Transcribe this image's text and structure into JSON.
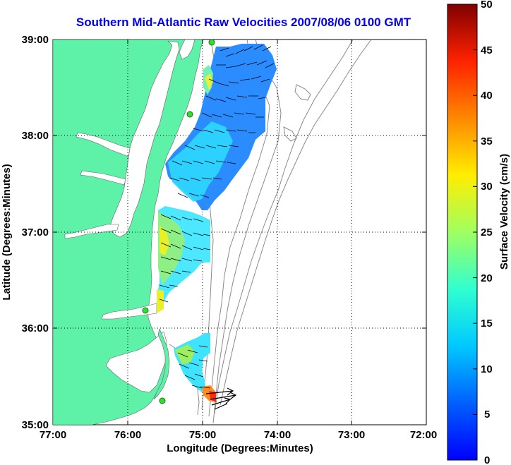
{
  "title": "Southern Mid-Atlantic Raw Velocities 2007/08/06 0100 GMT",
  "axes": {
    "xlabel": "Longitude (Degrees:Minutes)",
    "ylabel": "Latitude (Degrees:Minutes)",
    "x_ticks": [
      "77:00",
      "76:00",
      "75:00",
      "74:00",
      "73:00",
      "72:00"
    ],
    "y_ticks": [
      "35:00",
      "36:00",
      "37:00",
      "38:00",
      "39:00"
    ]
  },
  "colorbar": {
    "label": "Surface Velocity (cm/s)",
    "min": 0,
    "max": 50,
    "ticks": [
      "0",
      "5",
      "10",
      "15",
      "20",
      "25",
      "30",
      "35",
      "40",
      "45",
      "50"
    ]
  },
  "colors": {
    "land": "#5ef2a9",
    "water": "#ffffff",
    "bathymetry": "#8a8a8a",
    "title": "#0000ee",
    "site_marker": "#33dd33"
  }
}
